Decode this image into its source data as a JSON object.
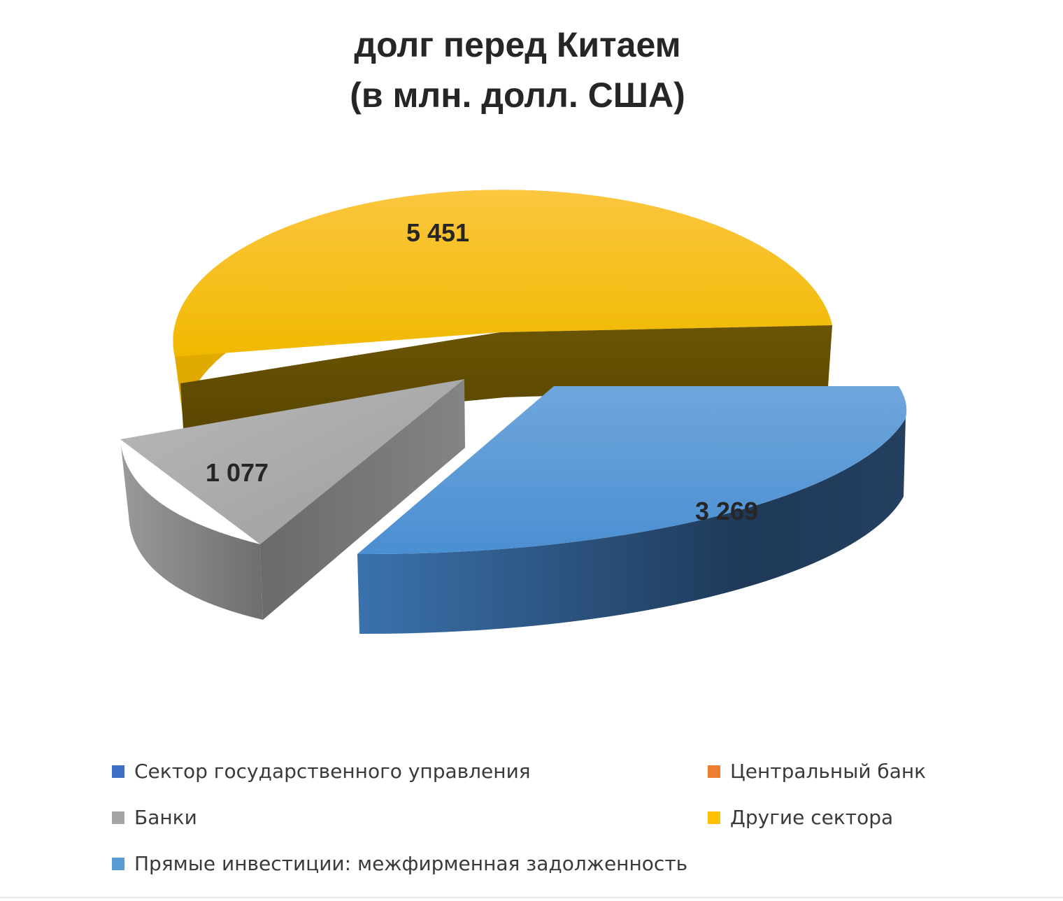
{
  "chart_data": {
    "type": "pie",
    "title_lines": [
      "долг перед Китаем",
      "(в млн. долл. США)"
    ],
    "slices": [
      {
        "name": "Сектор государственного управления",
        "value": 0,
        "color": "#3f6fc4",
        "label": ""
      },
      {
        "name": "Центральный банк",
        "value": 0,
        "color": "#ed7d31",
        "label": ""
      },
      {
        "name": "Банки",
        "value": 1077,
        "color": "#a5a5a5",
        "label": "1 077"
      },
      {
        "name": "Другие сектора",
        "value": 5451,
        "color": "#ffc000",
        "label": "5 451"
      },
      {
        "name": "Прямые инвестиции: межфирменная задолженность",
        "value": 3269,
        "color": "#5b9bd5",
        "label": "3 269"
      }
    ],
    "legend_position": "bottom",
    "style": "3d-exploded"
  }
}
